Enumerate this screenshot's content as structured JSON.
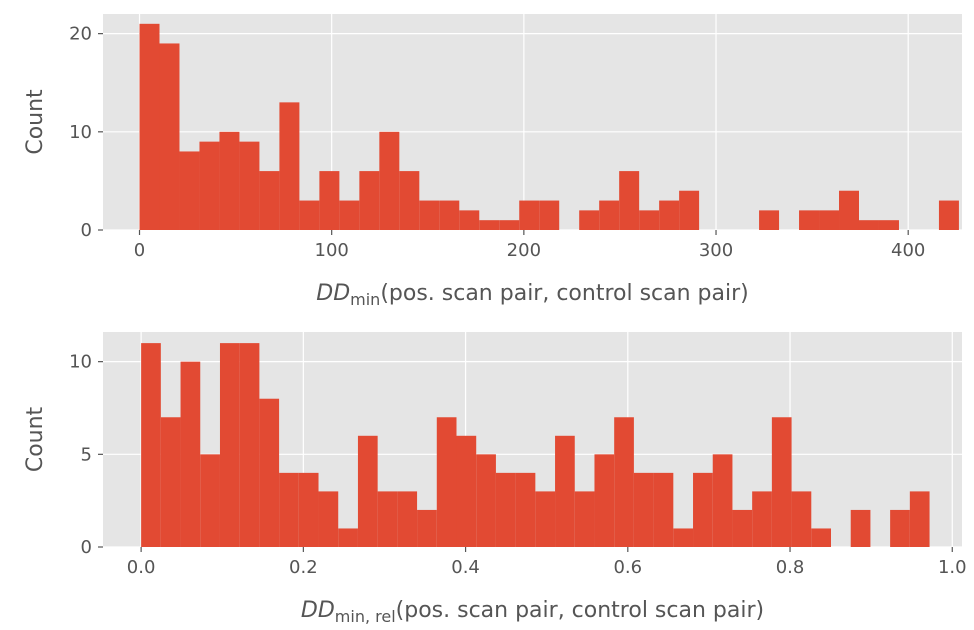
{
  "chart_data": [
    {
      "type": "bar",
      "kind": "histogram",
      "xlabel": {
        "main": "DD",
        "sub": "min",
        "rest": "(pos. scan pair, control scan pair)"
      },
      "ylabel": "Count",
      "xlim": [
        -19,
        428
      ],
      "ylim": [
        0,
        22
      ],
      "xticks": [
        0,
        100,
        200,
        300,
        400
      ],
      "xtick_labels": [
        "0",
        "100",
        "200",
        "300",
        "400"
      ],
      "yticks": [
        0,
        10,
        20
      ],
      "ytick_labels": [
        "0",
        "10",
        "20"
      ],
      "bin_start": 0,
      "bin_width": 10.4,
      "counts": [
        21,
        19,
        8,
        9,
        10,
        9,
        6,
        13,
        3,
        6,
        3,
        6,
        10,
        6,
        3,
        3,
        2,
        1,
        1,
        3,
        3,
        0,
        2,
        3,
        6,
        2,
        3,
        4,
        0,
        0,
        0,
        2,
        0,
        2,
        2,
        4,
        1,
        1,
        0,
        0,
        3
      ],
      "grid": true,
      "bar_color": "#E24A33"
    },
    {
      "type": "bar",
      "kind": "histogram",
      "xlabel": {
        "main": "DD",
        "sub": "min, rel",
        "rest": "(pos. scan pair, control scan pair)"
      },
      "ylabel": "Count",
      "xlim": [
        -0.047,
        1.012
      ],
      "ylim": [
        0,
        11.6
      ],
      "xticks": [
        0.0,
        0.2,
        0.4,
        0.6,
        0.8,
        1.0
      ],
      "xtick_labels": [
        "0.0",
        "0.2",
        "0.4",
        "0.6",
        "0.8",
        "1.0"
      ],
      "yticks": [
        0,
        5,
        10
      ],
      "ytick_labels": [
        "0",
        "5",
        "10"
      ],
      "bin_start": 0,
      "bin_width": 0.0243,
      "counts": [
        11,
        7,
        10,
        5,
        11,
        11,
        8,
        4,
        4,
        3,
        1,
        6,
        3,
        3,
        2,
        7,
        6,
        5,
        4,
        4,
        3,
        6,
        3,
        5,
        7,
        4,
        4,
        1,
        4,
        5,
        2,
        3,
        7,
        3,
        1,
        0,
        2,
        0,
        2,
        3
      ],
      "grid": true,
      "bar_color": "#E24A33"
    }
  ]
}
